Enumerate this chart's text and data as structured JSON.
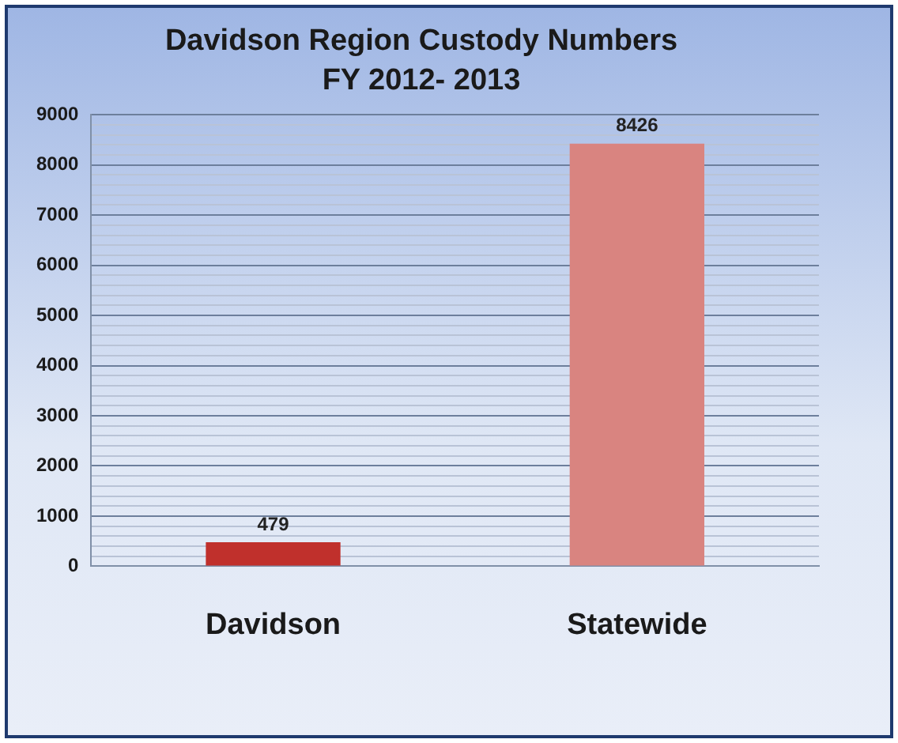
{
  "chart_data": {
    "type": "bar",
    "title": "Davidson Region Custody Numbers",
    "subtitle": "FY 2012- 2013",
    "categories": [
      "Davidson",
      "Statewide"
    ],
    "values": [
      479,
      8426
    ],
    "colors": [
      "#c0302c",
      "#d98480"
    ],
    "ylim": [
      0,
      9000
    ],
    "yticks": [
      0,
      {
        "value": 200,
        "label": null
      },
      {
        "value": 400,
        "label": null
      },
      {
        "value": 600,
        "label": null
      },
      {
        "value": 800,
        "label": null
      },
      1000,
      {
        "value": 1200,
        "label": null
      },
      {
        "value": 1400,
        "label": null
      },
      {
        "value": 1600,
        "label": null
      },
      {
        "value": 1800,
        "label": null
      },
      2000,
      {
        "value": 2200,
        "label": null
      },
      {
        "value": 2400,
        "label": null
      },
      {
        "value": 2600,
        "label": null
      },
      {
        "value": 2800,
        "label": null
      },
      3000,
      {
        "value": 3200,
        "label": null
      },
      {
        "value": 3400,
        "label": null
      },
      {
        "value": 3600,
        "label": null
      },
      {
        "value": 3800,
        "label": null
      },
      4000,
      {
        "value": 4200,
        "label": null
      },
      {
        "value": 4400,
        "label": null
      },
      {
        "value": 4600,
        "label": null
      },
      {
        "value": 4800,
        "label": null
      },
      5000,
      {
        "value": 5200,
        "label": null
      },
      {
        "value": 5400,
        "label": null
      },
      {
        "value": 5600,
        "label": null
      },
      {
        "value": 5800,
        "label": null
      },
      6000,
      {
        "value": 6200,
        "label": null
      },
      {
        "value": 6400,
        "label": null
      },
      {
        "value": 6600,
        "label": null
      },
      {
        "value": 6800,
        "label": null
      },
      7000,
      {
        "value": 7200,
        "label": null
      },
      {
        "value": 7400,
        "label": null
      },
      {
        "value": 7600,
        "label": null
      },
      {
        "value": 7800,
        "label": null
      },
      8000,
      {
        "value": 8200,
        "label": null
      },
      {
        "value": 8400,
        "label": null
      },
      {
        "value": 8600,
        "label": null
      },
      {
        "value": 8800,
        "label": null
      },
      9000
    ],
    "grid": "y",
    "legend": false,
    "data_labels": true
  }
}
